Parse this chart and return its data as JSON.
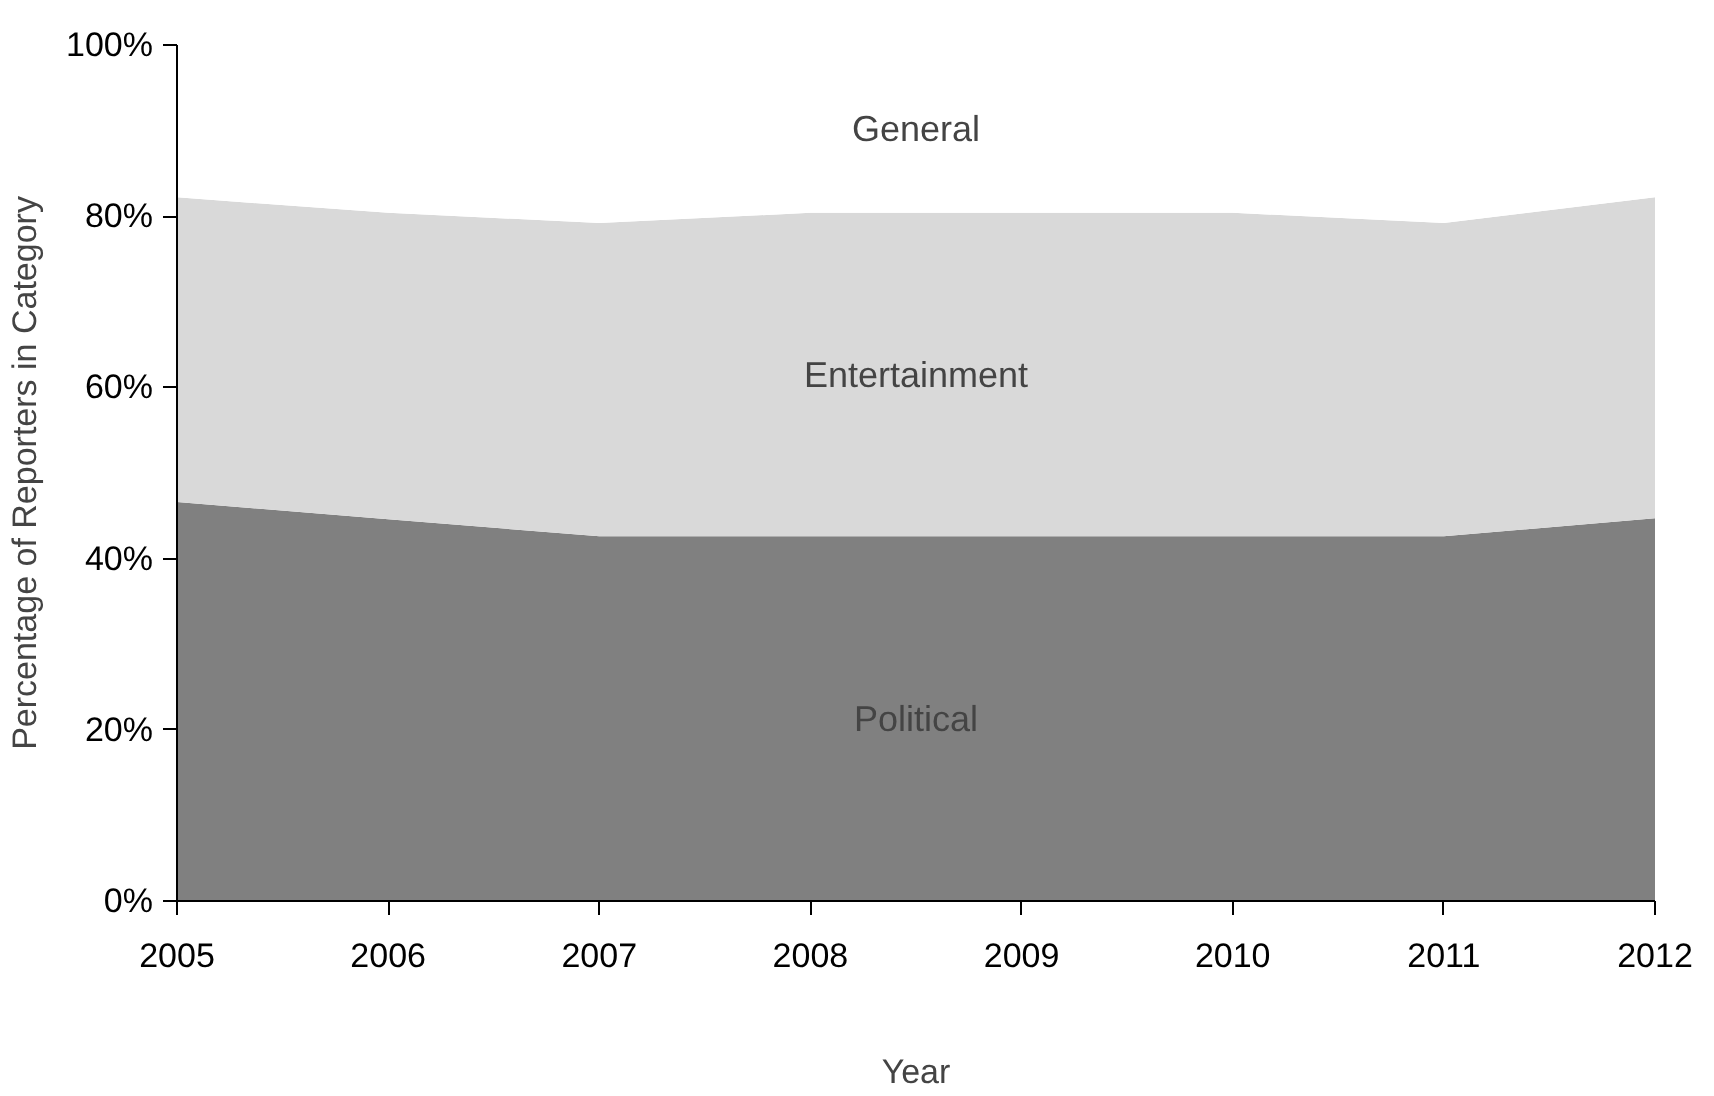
{
  "chart_data": {
    "type": "area",
    "stacked": true,
    "xlabel": "Year",
    "ylabel": "Percentage of Reporters in Category",
    "x": [
      2005,
      2006,
      2007,
      2008,
      2009,
      2010,
      2011,
      2012
    ],
    "series": [
      {
        "name": "Political",
        "color": "#808080",
        "values": [
          46.6,
          44.6,
          42.6,
          42.6,
          42.6,
          42.6,
          42.6,
          44.7
        ]
      },
      {
        "name": "Entertainment",
        "color": "#d9d9d9",
        "values": [
          35.6,
          35.8,
          36.6,
          37.8,
          37.8,
          37.8,
          36.6,
          37.5
        ]
      },
      {
        "name": "General",
        "color": "#ffffff",
        "values": [
          17.8,
          19.6,
          20.8,
          19.6,
          19.6,
          19.6,
          20.8,
          17.8
        ]
      }
    ],
    "xlim": [
      2005,
      2012
    ],
    "ylim": [
      0,
      100
    ],
    "xticks": [
      2005,
      2006,
      2007,
      2008,
      2009,
      2010,
      2011,
      2012
    ],
    "yticks": [
      {
        "value": 0,
        "label": "0%"
      },
      {
        "value": 20,
        "label": "20%"
      },
      {
        "value": 40,
        "label": "40%"
      },
      {
        "value": 60,
        "label": "60%"
      },
      {
        "value": 80,
        "label": "80%"
      },
      {
        "value": 100,
        "label": "100%"
      }
    ],
    "grid": false,
    "legend": false
  }
}
